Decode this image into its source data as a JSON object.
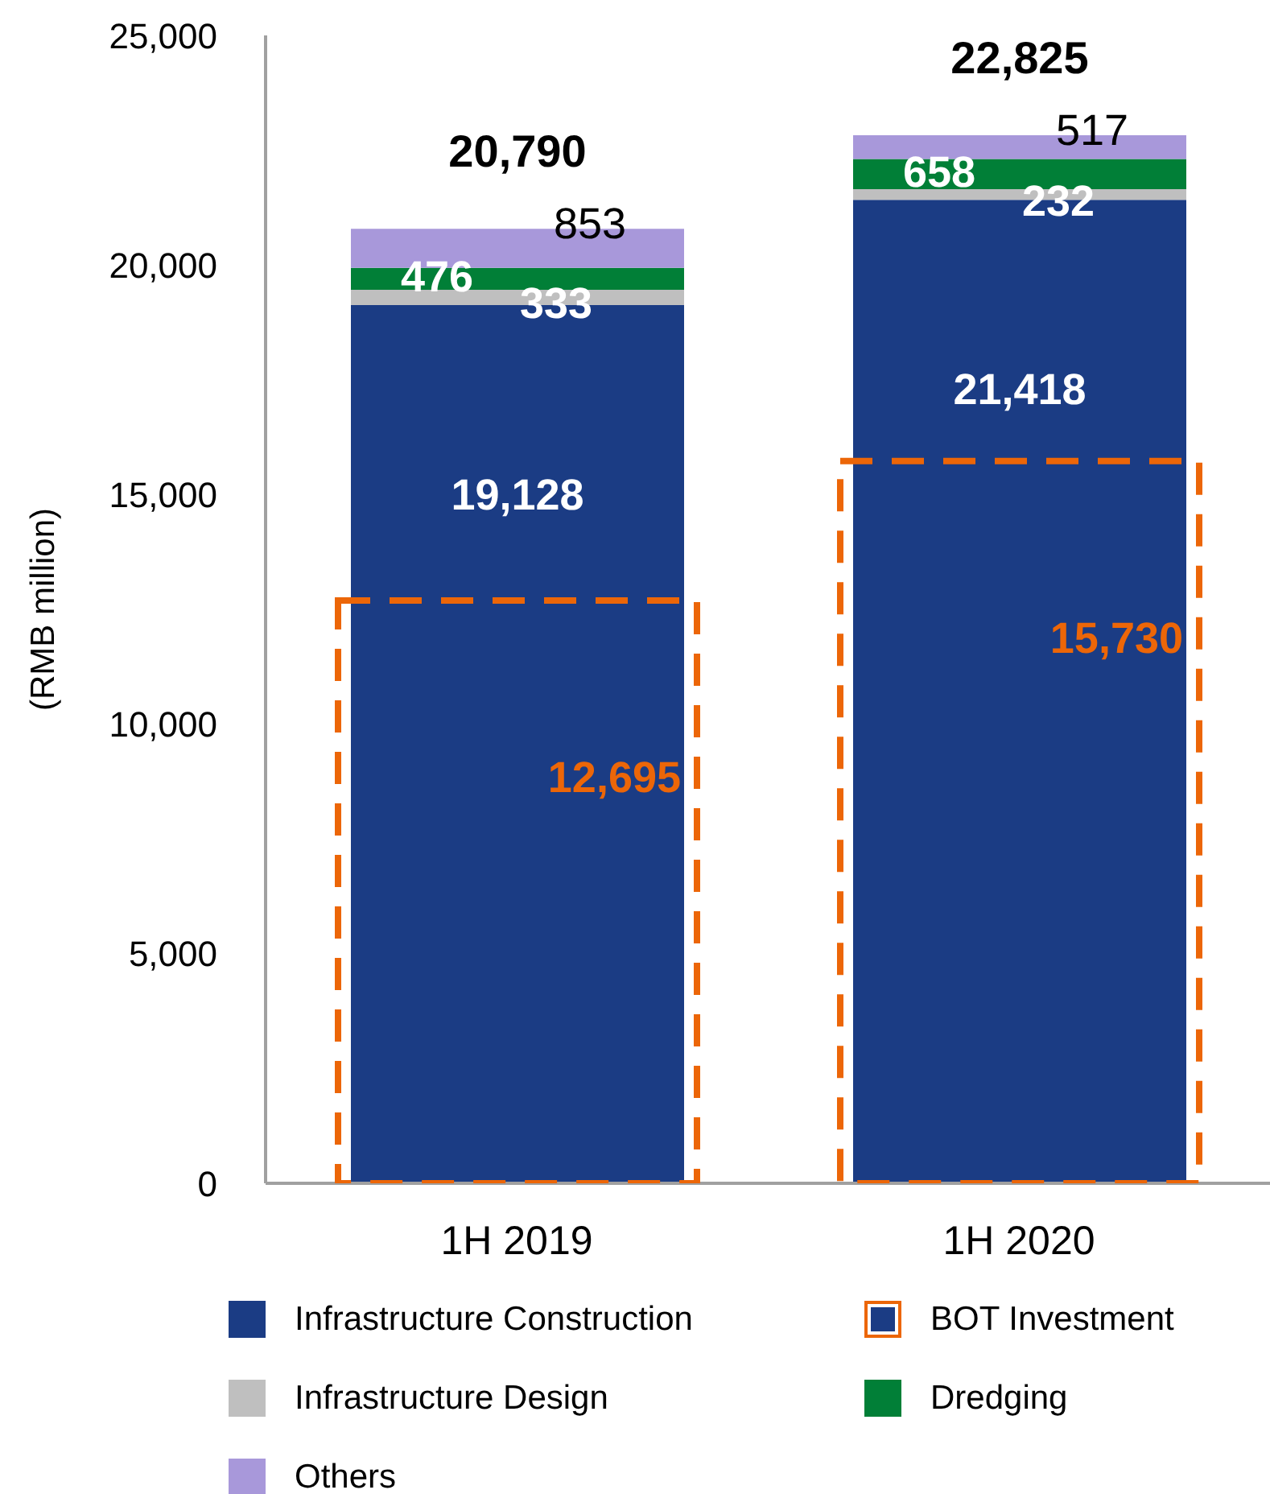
{
  "chart_data": [
    {
      "type": "bar",
      "stacked": true,
      "categories": [
        "1H 2019",
        "1H 2020"
      ],
      "series": [
        {
          "name": "Infrastructure Construction",
          "color": "#1b3c84",
          "values": [
            19128,
            21418
          ],
          "value_labels": [
            "19,128",
            "21,418"
          ]
        },
        {
          "name": "Infrastructure Design",
          "color": "#bfbfbf",
          "values": [
            333,
            232
          ],
          "value_labels": [
            "333",
            "232"
          ]
        },
        {
          "name": "Dredging",
          "color": "#017f37",
          "values": [
            476,
            658
          ],
          "value_labels": [
            "476",
            "658"
          ]
        },
        {
          "name": "Others",
          "color": "#a898da",
          "values": [
            853,
            517
          ],
          "value_labels": [
            "853",
            "517"
          ]
        }
      ],
      "ylabel": "(RMB million)",
      "ylim": [
        0,
        25000
      ],
      "yticks": [
        0,
        {
          "value": 5000,
          "label": "5,000"
        },
        {
          "value": 10000,
          "label": "10,000"
        },
        {
          "value": 15000,
          "label": "15,000"
        },
        {
          "value": 20000,
          "label": "20,000"
        },
        {
          "value": 25000,
          "label": "25,000"
        }
      ],
      "totals": [
        "20,790",
        "22,825"
      ],
      "legend": "bottom"
    },
    {
      "type": "bar",
      "categories": [
        null,
        null
      ],
      "series": [
        {
          "name": "BOT Investment",
          "color": "#ec6608",
          "values": [
            12695,
            15730
          ],
          "value_labels": [
            "12,695",
            "15,730"
          ]
        }
      ],
      "ylim": [
        0,
        25000
      ],
      "tick_labels": false,
      "line_style": "dashed",
      "legend": "bottom"
    }
  ]
}
